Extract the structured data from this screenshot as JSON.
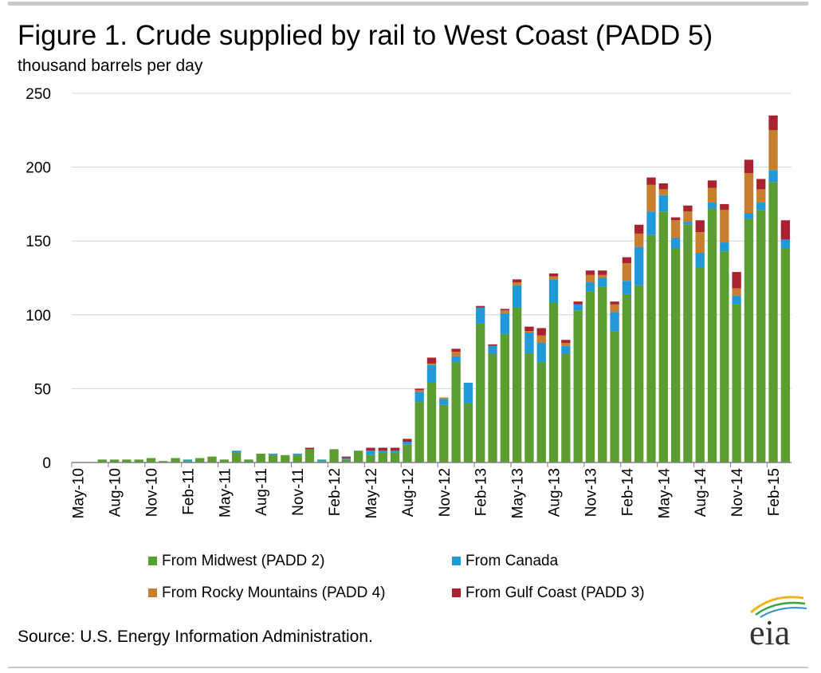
{
  "chart_data": {
    "type": "bar",
    "stacked": true,
    "title": "Figure 1. Crude supplied by rail to West Coast (PADD 5)",
    "subtitle": "thousand barrels per day",
    "ylim": [
      0,
      250
    ],
    "yticks": [
      0,
      50,
      100,
      150,
      200,
      250
    ],
    "grid": true,
    "legend_position": "bottom",
    "x_tick_labels": [
      "May-10",
      "Aug-10",
      "Nov-10",
      "Feb-11",
      "May-11",
      "Aug-11",
      "Nov-11",
      "Feb-12",
      "May-12",
      "Aug-12",
      "Nov-12",
      "Feb-13",
      "May-13",
      "Aug-13",
      "Nov-13",
      "Feb-14",
      "May-14",
      "Aug-14",
      "Nov-14",
      "Feb-15"
    ],
    "categories": [
      "May-10",
      "Jun-10",
      "Jul-10",
      "Aug-10",
      "Sep-10",
      "Oct-10",
      "Nov-10",
      "Dec-10",
      "Jan-11",
      "Feb-11",
      "Mar-11",
      "Apr-11",
      "May-11",
      "Jun-11",
      "Jul-11",
      "Aug-11",
      "Sep-11",
      "Oct-11",
      "Nov-11",
      "Dec-11",
      "Jan-12",
      "Feb-12",
      "Mar-12",
      "Apr-12",
      "May-12",
      "Jun-12",
      "Jul-12",
      "Aug-12",
      "Sep-12",
      "Oct-12",
      "Nov-12",
      "Dec-12",
      "Jan-13",
      "Feb-13",
      "Mar-13",
      "Apr-13",
      "May-13",
      "Jun-13",
      "Jul-13",
      "Aug-13",
      "Sep-13",
      "Oct-13",
      "Nov-13",
      "Dec-13",
      "Jan-14",
      "Feb-14",
      "Mar-14",
      "Apr-14",
      "May-14",
      "Jun-14",
      "Jul-14",
      "Aug-14",
      "Sep-14",
      "Oct-14",
      "Nov-14",
      "Dec-14",
      "Jan-15",
      "Feb-15",
      "Mar-15"
    ],
    "series": [
      {
        "name": "From Midwest (PADD 2)",
        "color": "#5c9d32",
        "values": [
          0,
          0,
          2,
          2,
          2,
          2,
          3,
          1,
          3,
          1,
          3,
          4,
          2,
          7,
          2,
          6,
          5,
          5,
          5,
          9,
          1,
          9,
          2,
          8,
          5,
          7,
          7,
          12,
          41,
          54,
          39,
          68,
          40,
          94,
          74,
          87,
          105,
          74,
          68,
          108,
          74,
          103,
          116,
          119,
          89,
          114,
          120,
          154,
          170,
          145,
          161,
          132,
          172,
          143,
          107,
          165,
          171,
          190,
          145
        ]
      },
      {
        "name": "From Canada",
        "color": "#1f99d7",
        "values": [
          0,
          0,
          0,
          0,
          0,
          0,
          0,
          0,
          0,
          1,
          0,
          0,
          0,
          1,
          0,
          0,
          1,
          0,
          1,
          0,
          1,
          0,
          1,
          0,
          3,
          1,
          1,
          2,
          7,
          12,
          4,
          4,
          14,
          11,
          5,
          14,
          15,
          14,
          13,
          16,
          5,
          4,
          6,
          6,
          13,
          9,
          26,
          16,
          11,
          7,
          2,
          10,
          4,
          6,
          6,
          4,
          5,
          8,
          6
        ]
      },
      {
        "name": "From Rocky Mountains (PADD 4)",
        "color": "#c77e2e",
        "values": [
          0,
          0,
          0,
          0,
          0,
          0,
          0,
          0,
          0,
          0,
          0,
          0,
          0,
          0,
          0,
          0,
          0,
          0,
          0,
          0,
          0,
          0,
          0,
          0,
          0,
          0,
          0,
          0,
          1,
          1,
          1,
          3,
          0,
          0,
          0,
          2,
          2,
          1,
          5,
          2,
          2,
          0,
          5,
          2,
          5,
          12,
          9,
          18,
          4,
          12,
          7,
          14,
          10,
          22,
          5,
          27,
          9,
          27,
          0
        ]
      },
      {
        "name": "From Gulf Coast (PADD 3)",
        "color": "#a8232f",
        "values": [
          0,
          0,
          0,
          0,
          0,
          0,
          0,
          0,
          0,
          0,
          0,
          0,
          0,
          0,
          0,
          0,
          0,
          0,
          0,
          1,
          0,
          0,
          1,
          0,
          2,
          2,
          2,
          2,
          1,
          4,
          0,
          2,
          0,
          1,
          1,
          1,
          2,
          3,
          5,
          2,
          2,
          2,
          3,
          3,
          2,
          4,
          6,
          5,
          4,
          2,
          4,
          8,
          5,
          4,
          11,
          9,
          7,
          10,
          13
        ]
      }
    ]
  },
  "source": "Source: U.S. Energy Information  Administration.",
  "logo": {
    "text": "eia"
  }
}
